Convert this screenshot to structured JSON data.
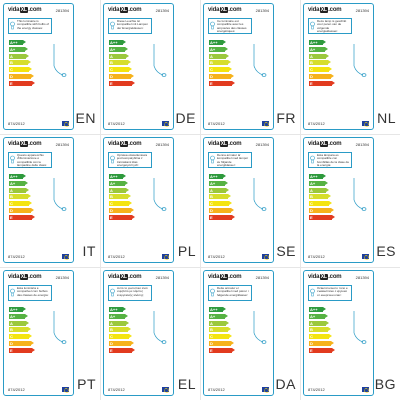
{
  "brand": {
    "text_before": "vida",
    "text_x": "XL",
    "text_after": ".com"
  },
  "model_code": "281394",
  "regulation": "874/2012",
  "classes": [
    {
      "letter": "A++",
      "color": "#2e9a3d"
    },
    {
      "letter": "A+",
      "color": "#56b242"
    },
    {
      "letter": "A",
      "color": "#9bc83c"
    },
    {
      "letter": "B",
      "color": "#d6de2c"
    },
    {
      "letter": "C",
      "color": "#f4e40f"
    },
    {
      "letter": "D",
      "color": "#f6b21b"
    },
    {
      "letter": "E",
      "color": "#e23b1f"
    }
  ],
  "labels": [
    {
      "lang": "EN",
      "text": "This luminaire is compatible with bulbs of the energy classes:"
    },
    {
      "lang": "DE",
      "text": "Diese Leuchte ist kompatibel mit Lampen der Energieklassen:"
    },
    {
      "lang": "FR",
      "text": "Ce luminaire est compatible avec les ampoules des classes énergétiques:"
    },
    {
      "lang": "NL",
      "text": "Deze lamp is geschikt voor peren van de volgende energieklassen:"
    },
    {
      "lang": "IT",
      "text": "Questo apparecchio d'illuminazione è compatibile con le lampadine delle classi energetiche:"
    },
    {
      "lang": "PL",
      "text": "Oprawa oświetleniowa jest kompatybilna z żarówkami klas energetycznych:"
    },
    {
      "lang": "SE",
      "text": "Denna armatur är kompatibel med lampor av följande energiklasser:"
    },
    {
      "lang": "ES",
      "text": "Esta lámpara es compatible con bombillas de la clase de la energía:"
    },
    {
      "lang": "PT",
      "text": "Esta luminária é compatível com bulbos das classes de energia:"
    },
    {
      "lang": "EL",
      "text": "Αυτό το φωτιστικό είναι συμβατό με λάμπες ενεργειακής κλάσης:"
    },
    {
      "lang": "DA",
      "text": "Dette armatur er kompatibel med pærer i følgende energiklasser:"
    },
    {
      "lang": "BG",
      "text": "Осветителното тяло е съвместимо с крушки от енергиен клас:"
    }
  ]
}
